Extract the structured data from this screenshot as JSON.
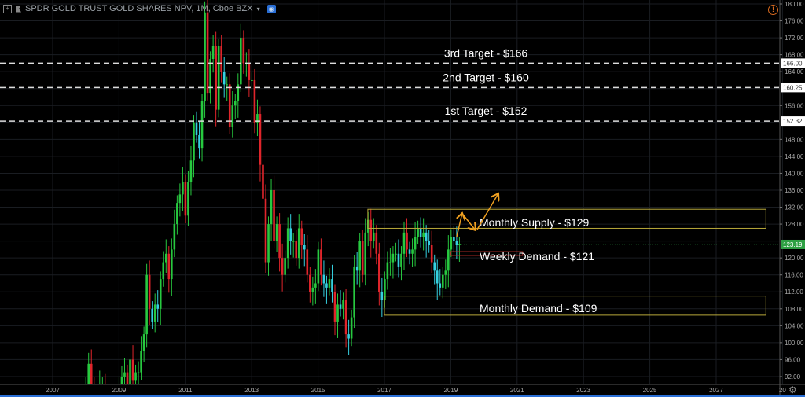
{
  "header": {
    "symbol_title": "SPDR GOLD TRUST GOLD SHARES NPV, 1M, Cboe BZX",
    "expand_icon": "plus-square-icon",
    "flag_icon": "flag-icon",
    "visibility_icon": "eye-icon"
  },
  "alert_icon": "warning-circle-icon",
  "settings_icon": "gear-icon",
  "colors": {
    "up": "#27c93f",
    "down": "#e0252b",
    "down_small": "#35d0e0",
    "zone": "#b9a93a",
    "weekly_zone": "#c0302c",
    "arrow": "#f0a020",
    "last_price_bg": "#2ea043"
  },
  "chart_data": {
    "type": "candlestick",
    "interval": "1M",
    "start": "2008-01",
    "closes": [
      90,
      95,
      90,
      86,
      86,
      90,
      90,
      81,
      86,
      70,
      80,
      86,
      90,
      92,
      93,
      87,
      96,
      91,
      93,
      93,
      98,
      102,
      116,
      108,
      105,
      109,
      108,
      115,
      119,
      121,
      115,
      122,
      128,
      133,
      135,
      138,
      130,
      138,
      143,
      152,
      149,
      146,
      157,
      178,
      159,
      167,
      170,
      155,
      170,
      164,
      161,
      161,
      151,
      156,
      157,
      161,
      172,
      166,
      166,
      162,
      162,
      152,
      154,
      142,
      134,
      119,
      128,
      136,
      124,
      128,
      120,
      116,
      120,
      127,
      124,
      124,
      120,
      127,
      123,
      122,
      116,
      112,
      113,
      114,
      122,
      116,
      114,
      113,
      115,
      112,
      105,
      109,
      108,
      110,
      102,
      101,
      106,
      118,
      117,
      124,
      116,
      126,
      129,
      124,
      126,
      121,
      112,
      110,
      115,
      119,
      119,
      121,
      121,
      118,
      121,
      126,
      122,
      121,
      122,
      125,
      127,
      125,
      126,
      124,
      123,
      119,
      117,
      114,
      113,
      116,
      117,
      122,
      125,
      124,
      123,
      123.19
    ],
    "ylim": [
      90,
      180
    ],
    "y_ticks": [
      "180.00",
      "176.00",
      "172.00",
      "168.00",
      "164.00",
      "156.00",
      "148.00",
      "144.00",
      "140.00",
      "136.00",
      "132.00",
      "128.00",
      "120.00",
      "116.00",
      "112.00",
      "108.00",
      "104.00",
      "100.00",
      "96.00",
      "92.00"
    ],
    "x_ticks": [
      "2007",
      "2009",
      "2011",
      "2013",
      "2015",
      "2017",
      "2019",
      "2021",
      "2023",
      "2025",
      "2027",
      "20"
    ],
    "last_price": "123.19",
    "targets": [
      {
        "label": "3rd Target - $166",
        "price": 166.0,
        "price_label": "166.00"
      },
      {
        "label": "2nd Target - $160",
        "price": 160.25,
        "price_label": "160.25"
      },
      {
        "label": "1st Target - $152",
        "price": 152.32,
        "price_label": "152.32"
      }
    ],
    "zones": [
      {
        "label": "Monthly Supply - $129",
        "top": 131.5,
        "bottom": 127,
        "from": "2016-07",
        "to": "2028-07",
        "kind": "monthly"
      },
      {
        "label": "Weekly Demand - $121",
        "top": 121.5,
        "bottom": 120.6,
        "from": "2019-01",
        "to": "2021-03",
        "kind": "weekly"
      },
      {
        "label": "Monthly Demand - $109",
        "top": 111,
        "bottom": 106.5,
        "from": "2017-01",
        "to": "2028-07",
        "kind": "monthly"
      }
    ]
  }
}
